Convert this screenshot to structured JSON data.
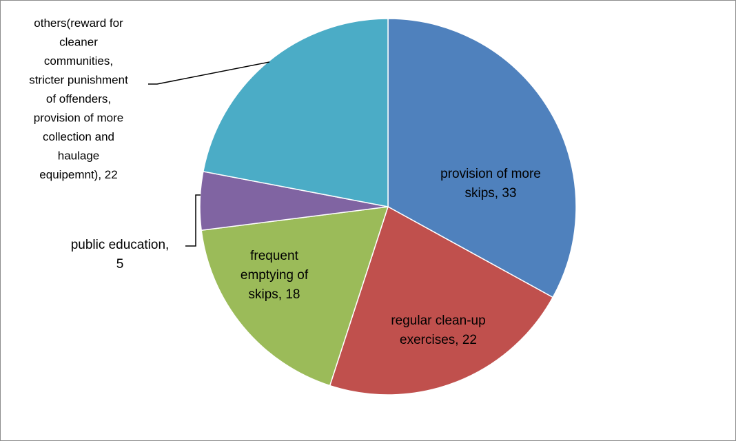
{
  "chart_data": {
    "type": "pie",
    "title": "",
    "start_angle_deg": 0,
    "direction": "clockwise",
    "slices": [
      {
        "label_lines": [
          "provision of more",
          "skips, 33"
        ],
        "value": 33,
        "color": "#4F81BD"
      },
      {
        "label_lines": [
          "regular clean-up",
          "exercises, 22"
        ],
        "value": 22,
        "color": "#C0504D"
      },
      {
        "label_lines": [
          "frequent",
          "emptying of",
          "skips, 18"
        ],
        "value": 18,
        "color": "#9BBB59"
      },
      {
        "label_lines": [
          "public education,",
          "5"
        ],
        "value": 5,
        "color": "#8064A2"
      },
      {
        "label_lines": [
          "others(reward for",
          "cleaner",
          "communities,",
          "stricter punishment",
          "of offenders,",
          "provision of more",
          "collection and",
          "haulage",
          "equipemnt), 22"
        ],
        "value": 22,
        "color": "#4BACC6"
      }
    ]
  }
}
